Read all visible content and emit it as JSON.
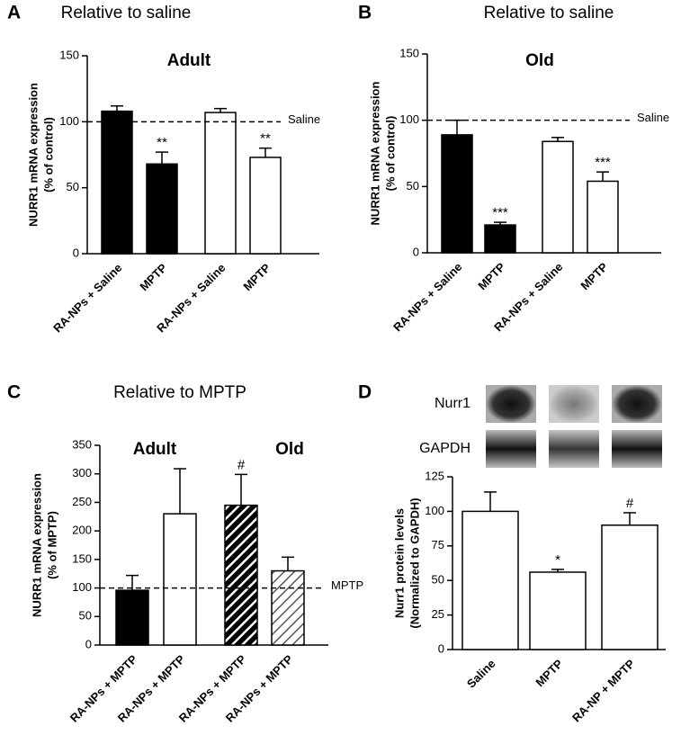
{
  "chart_data": [
    {
      "type": "bar",
      "panel": "A",
      "title": "Relative to saline",
      "subtitle": "Adult",
      "ylabel": [
        "NURR1 mRNA expression",
        "(% of control)"
      ],
      "categories": [
        "RA-NPs + Saline",
        "MPTP",
        "RA-NPs + Saline",
        "MPTP"
      ],
      "values": [
        108,
        68,
        107,
        73
      ],
      "errors": [
        4,
        9,
        3,
        7
      ],
      "colors": [
        "#000000",
        "#000000",
        "#ffffff",
        "#ffffff"
      ],
      "hatch": [
        false,
        false,
        false,
        false
      ],
      "bar_labels": [
        null,
        "**",
        null,
        "**"
      ],
      "ref_line": {
        "value": 100,
        "label": "Saline"
      },
      "ylim": [
        0,
        150
      ],
      "yticks": [
        0,
        50,
        100,
        150
      ]
    },
    {
      "type": "bar",
      "panel": "B",
      "title": "Relative to saline",
      "subtitle": "Old",
      "ylabel": [
        "NURR1 mRNA expression",
        "(% of control)"
      ],
      "categories": [
        "RA-NPs + Saline",
        "MPTP",
        "RA-NPs + Saline",
        "MPTP"
      ],
      "values": [
        89,
        21,
        84,
        54
      ],
      "errors": [
        11,
        2,
        3,
        7
      ],
      "colors": [
        "#000000",
        "#000000",
        "#ffffff",
        "#ffffff"
      ],
      "hatch": [
        false,
        false,
        false,
        false
      ],
      "bar_labels": [
        null,
        "***",
        null,
        "***"
      ],
      "ref_line": {
        "value": 100,
        "label": "Saline"
      },
      "ylim": [
        0,
        150
      ],
      "yticks": [
        0,
        50,
        100,
        150
      ]
    },
    {
      "type": "bar",
      "panel": "C",
      "title": "Relative to MPTP",
      "group_labels": [
        "Adult",
        "Old"
      ],
      "ylabel": [
        "NURR1 mRNA expression",
        "(% of MPTP)"
      ],
      "categories": [
        "RA-NPs + MPTP",
        "RA-NPs + MPTP",
        "RA-NPs + MPTP",
        "RA-NPs + MPTP"
      ],
      "values": [
        96,
        230,
        245,
        130
      ],
      "errors": [
        26,
        79,
        54,
        24
      ],
      "colors": [
        "#000000",
        "#ffffff",
        "#000000",
        "#ffffff"
      ],
      "hatch": [
        false,
        false,
        true,
        true
      ],
      "bar_labels": [
        null,
        null,
        "#",
        null
      ],
      "ref_line": {
        "value": 100,
        "label": "MPTP"
      },
      "ylim": [
        0,
        350
      ],
      "yticks": [
        0,
        50,
        100,
        150,
        200,
        250,
        300,
        350
      ]
    },
    {
      "type": "bar",
      "panel": "D",
      "blot_labels": [
        "Nurr1",
        "GAPDH"
      ],
      "ylabel": [
        "Nurr1 protein levels",
        "(Normalized to GAPDH)"
      ],
      "categories": [
        "Saline",
        "MPTP",
        "RA-NP + MPTP"
      ],
      "values": [
        100,
        56,
        90
      ],
      "errors": [
        14,
        2,
        9
      ],
      "colors": [
        "#ffffff",
        "#ffffff",
        "#ffffff"
      ],
      "hatch": [
        false,
        false,
        false
      ],
      "bar_labels": [
        null,
        "*",
        "#"
      ],
      "ylim": [
        0,
        125
      ],
      "yticks": [
        0,
        25,
        50,
        75,
        100,
        125
      ]
    }
  ]
}
